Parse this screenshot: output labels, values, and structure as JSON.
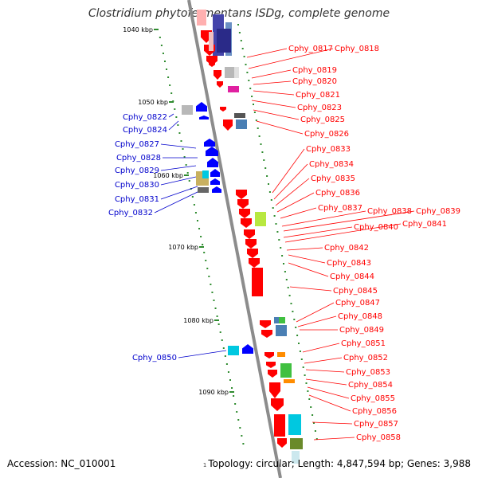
{
  "title": "Clostridium phytofermentans ISDg, complete genome",
  "footer": {
    "accession": "Accession: NC_010001",
    "marker": "1",
    "info": "Topology: circular; Length: 4,847,594 bp; Genes: 3,988"
  },
  "colors": {
    "backbone": "#8c8c8c",
    "ticks": "#2e8b2e",
    "forward_gene": "#0000ff",
    "reverse_gene": "#ff0000",
    "left_label": "#0000cc",
    "right_label": "#ff0000"
  },
  "kbp_ticks": [
    "1040 kbp",
    "1050 kbp",
    "1060 kbp",
    "1070 kbp",
    "1080 kbp",
    "1090 kbp"
  ],
  "left_labels": [
    "Cphy_0822",
    "Cphy_0824",
    "Cphy_0827",
    "Cphy_0828",
    "Cphy_0829",
    "Cphy_0830",
    "Cphy_0831",
    "Cphy_0832",
    "Cphy_0850"
  ],
  "right_labels": [
    "Cphy_0817",
    "Cphy_0818",
    "Cphy_0819",
    "Cphy_0820",
    "Cphy_0821",
    "Cphy_0823",
    "Cphy_0825",
    "Cphy_0826",
    "Cphy_0833",
    "Cphy_0834",
    "Cphy_0835",
    "Cphy_0836",
    "Cphy_0837",
    "Cphy_0838",
    "Cphy_0839",
    "Cphy_0840",
    "Cphy_0841",
    "Cphy_0842",
    "Cphy_0843",
    "Cphy_0844",
    "Cphy_0845",
    "Cphy_0847",
    "Cphy_0848",
    "Cphy_0849",
    "Cphy_0851",
    "Cphy_0852",
    "Cphy_0853",
    "Cphy_0854",
    "Cphy_0855",
    "Cphy_0856",
    "Cphy_0857",
    "Cphy_0858"
  ]
}
